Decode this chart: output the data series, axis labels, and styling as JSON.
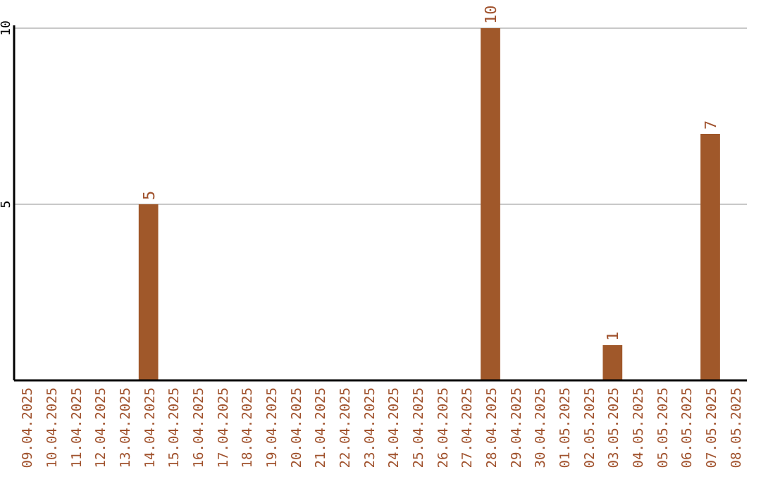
{
  "chart_data": {
    "type": "bar",
    "categories": [
      "09.04.2025",
      "10.04.2025",
      "11.04.2025",
      "12.04.2025",
      "13.04.2025",
      "14.04.2025",
      "15.04.2025",
      "16.04.2025",
      "17.04.2025",
      "18.04.2025",
      "19.04.2025",
      "20.04.2025",
      "21.04.2025",
      "22.04.2025",
      "23.04.2025",
      "24.04.2025",
      "25.04.2025",
      "26.04.2025",
      "27.04.2025",
      "28.04.2025",
      "29.04.2025",
      "30.04.2025",
      "01.05.2025",
      "02.05.2025",
      "03.05.2025",
      "04.05.2025",
      "05.05.2025",
      "06.05.2025",
      "07.05.2025",
      "08.05.2025"
    ],
    "values": [
      0,
      0,
      0,
      0,
      0,
      5,
      0,
      0,
      0,
      0,
      0,
      0,
      0,
      0,
      0,
      0,
      0,
      0,
      0,
      10,
      0,
      0,
      0,
      0,
      1,
      0,
      0,
      0,
      7,
      0
    ],
    "value_labels": [
      null,
      null,
      null,
      null,
      null,
      "5",
      null,
      null,
      null,
      null,
      null,
      null,
      null,
      null,
      null,
      null,
      null,
      null,
      null,
      "10",
      null,
      null,
      null,
      null,
      "1",
      null,
      null,
      null,
      "7",
      null
    ],
    "color": "#a0582a",
    "ylim": [
      0,
      10
    ],
    "yticks": [
      5,
      10
    ],
    "grid": "y"
  }
}
